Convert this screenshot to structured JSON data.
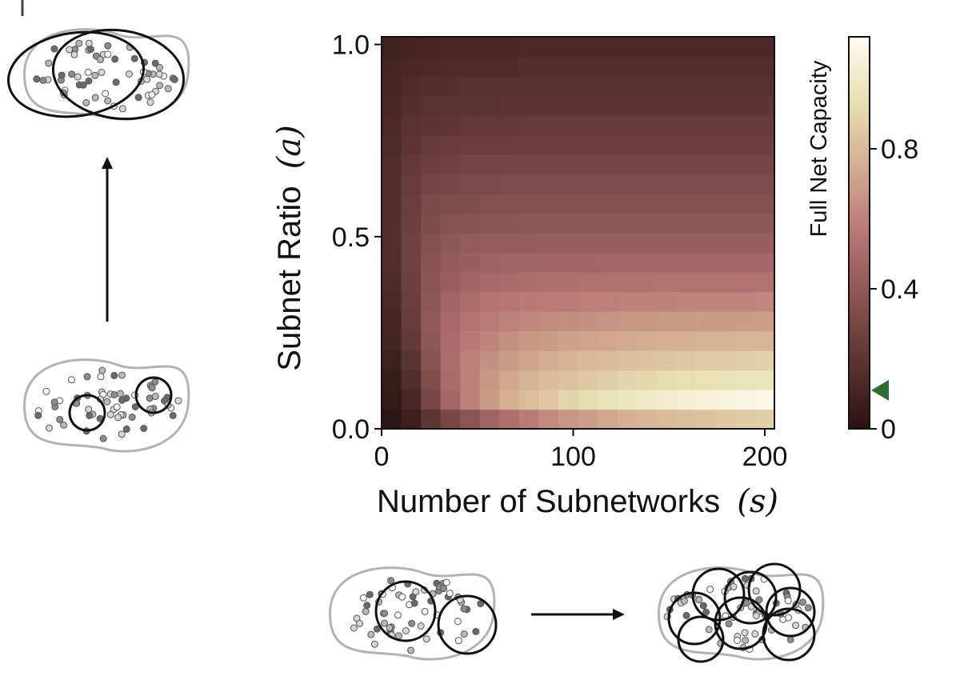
{
  "chart_data": {
    "type": "heatmap",
    "title": "",
    "xlabel": "Number of Subnetworks",
    "xlabel_symbol": "(s)",
    "ylabel": "Subnet Ratio",
    "ylabel_symbol": "(a)",
    "xlim": [
      0,
      205
    ],
    "ylim": [
      0.0,
      1.02
    ],
    "x_ticks": [
      0,
      100,
      200
    ],
    "x_tick_labels": [
      "0",
      "100",
      "200"
    ],
    "y_ticks": [
      0.0,
      0.5,
      1.0
    ],
    "y_tick_labels": [
      "0.0",
      "0.5",
      "1.0"
    ],
    "grid": false,
    "n_cols": 20,
    "n_rows": 20,
    "x_cell_width": 10.25,
    "y_cell_height": 0.051,
    "color_map": [
      "#2a1212",
      "#5a3333",
      "#8a5454",
      "#b87676",
      "#d3ac92",
      "#e6e0b2",
      "#fffaf0"
    ],
    "colorbar": {
      "label": "Full Net Capacity",
      "range": [
        0,
        1.12
      ],
      "ticks": [
        0,
        0.4,
        0.8
      ],
      "tick_labels": [
        "0",
        "0.4",
        "0.8"
      ],
      "marker_value": 0.11,
      "marker_color": "#2e6b35"
    },
    "values": [
      [
        0.02,
        0.07,
        0.2,
        0.3,
        0.38,
        0.46,
        0.52,
        0.58,
        0.63,
        0.67,
        0.7,
        0.73,
        0.76,
        0.78,
        0.8,
        0.82,
        0.83,
        0.85,
        0.86,
        0.87
      ],
      [
        0.04,
        0.12,
        0.3,
        0.48,
        0.6,
        0.69,
        0.76,
        0.81,
        0.85,
        0.89,
        0.92,
        0.95,
        0.98,
        1.0,
        1.02,
        1.04,
        1.05,
        1.06,
        1.08,
        1.1
      ],
      [
        0.06,
        0.16,
        0.34,
        0.5,
        0.6,
        0.67,
        0.73,
        0.77,
        0.8,
        0.83,
        0.85,
        0.87,
        0.89,
        0.9,
        0.92,
        0.93,
        0.94,
        0.95,
        0.96,
        0.97
      ],
      [
        0.08,
        0.19,
        0.37,
        0.51,
        0.59,
        0.65,
        0.69,
        0.72,
        0.75,
        0.77,
        0.79,
        0.8,
        0.82,
        0.83,
        0.84,
        0.85,
        0.86,
        0.86,
        0.87,
        0.88
      ],
      [
        0.1,
        0.22,
        0.39,
        0.5,
        0.57,
        0.61,
        0.65,
        0.67,
        0.69,
        0.71,
        0.72,
        0.73,
        0.74,
        0.75,
        0.76,
        0.76,
        0.77,
        0.77,
        0.78,
        0.78
      ],
      [
        0.11,
        0.24,
        0.4,
        0.49,
        0.54,
        0.58,
        0.6,
        0.62,
        0.63,
        0.64,
        0.65,
        0.66,
        0.67,
        0.67,
        0.68,
        0.68,
        0.69,
        0.69,
        0.69,
        0.7
      ],
      [
        0.13,
        0.25,
        0.39,
        0.47,
        0.51,
        0.54,
        0.55,
        0.57,
        0.58,
        0.58,
        0.59,
        0.59,
        0.6,
        0.6,
        0.6,
        0.61,
        0.61,
        0.61,
        0.61,
        0.62
      ],
      [
        0.14,
        0.26,
        0.38,
        0.44,
        0.47,
        0.49,
        0.5,
        0.51,
        0.52,
        0.52,
        0.53,
        0.53,
        0.53,
        0.53,
        0.54,
        0.54,
        0.54,
        0.54,
        0.54,
        0.54
      ],
      [
        0.15,
        0.27,
        0.37,
        0.41,
        0.44,
        0.45,
        0.46,
        0.46,
        0.47,
        0.47,
        0.47,
        0.48,
        0.48,
        0.48,
        0.48,
        0.48,
        0.48,
        0.48,
        0.48,
        0.48
      ],
      [
        0.16,
        0.27,
        0.35,
        0.39,
        0.41,
        0.41,
        0.42,
        0.42,
        0.43,
        0.43,
        0.43,
        0.43,
        0.43,
        0.43,
        0.43,
        0.43,
        0.43,
        0.43,
        0.43,
        0.43
      ],
      [
        0.16,
        0.26,
        0.33,
        0.36,
        0.37,
        0.38,
        0.38,
        0.39,
        0.39,
        0.39,
        0.39,
        0.39,
        0.39,
        0.39,
        0.39,
        0.39,
        0.39,
        0.39,
        0.39,
        0.39
      ],
      [
        0.16,
        0.25,
        0.31,
        0.33,
        0.34,
        0.35,
        0.35,
        0.35,
        0.35,
        0.35,
        0.35,
        0.35,
        0.35,
        0.35,
        0.35,
        0.35,
        0.35,
        0.35,
        0.35,
        0.35
      ],
      [
        0.16,
        0.24,
        0.28,
        0.3,
        0.31,
        0.31,
        0.32,
        0.32,
        0.32,
        0.32,
        0.32,
        0.32,
        0.32,
        0.32,
        0.32,
        0.32,
        0.32,
        0.32,
        0.32,
        0.32
      ],
      [
        0.15,
        0.22,
        0.26,
        0.27,
        0.28,
        0.28,
        0.28,
        0.29,
        0.29,
        0.29,
        0.29,
        0.29,
        0.29,
        0.29,
        0.29,
        0.29,
        0.29,
        0.29,
        0.29,
        0.29
      ],
      [
        0.14,
        0.2,
        0.23,
        0.24,
        0.25,
        0.25,
        0.25,
        0.26,
        0.26,
        0.26,
        0.26,
        0.26,
        0.26,
        0.26,
        0.26,
        0.26,
        0.26,
        0.26,
        0.26,
        0.26
      ],
      [
        0.13,
        0.18,
        0.2,
        0.21,
        0.22,
        0.22,
        0.22,
        0.23,
        0.23,
        0.23,
        0.23,
        0.23,
        0.23,
        0.23,
        0.23,
        0.23,
        0.23,
        0.23,
        0.23,
        0.23
      ],
      [
        0.12,
        0.16,
        0.18,
        0.19,
        0.19,
        0.19,
        0.2,
        0.2,
        0.2,
        0.2,
        0.2,
        0.2,
        0.2,
        0.2,
        0.2,
        0.2,
        0.2,
        0.2,
        0.2,
        0.2
      ],
      [
        0.11,
        0.14,
        0.16,
        0.16,
        0.17,
        0.17,
        0.17,
        0.17,
        0.17,
        0.17,
        0.17,
        0.17,
        0.17,
        0.17,
        0.17,
        0.17,
        0.17,
        0.17,
        0.17,
        0.17
      ],
      [
        0.1,
        0.12,
        0.13,
        0.14,
        0.14,
        0.14,
        0.14,
        0.15,
        0.15,
        0.15,
        0.15,
        0.15,
        0.15,
        0.15,
        0.15,
        0.15,
        0.15,
        0.15,
        0.15,
        0.15
      ],
      [
        0.09,
        0.1,
        0.11,
        0.12,
        0.12,
        0.12,
        0.12,
        0.13,
        0.13,
        0.13,
        0.13,
        0.13,
        0.13,
        0.13,
        0.13,
        0.13,
        0.13,
        0.13,
        0.13,
        0.13
      ]
    ]
  }
}
